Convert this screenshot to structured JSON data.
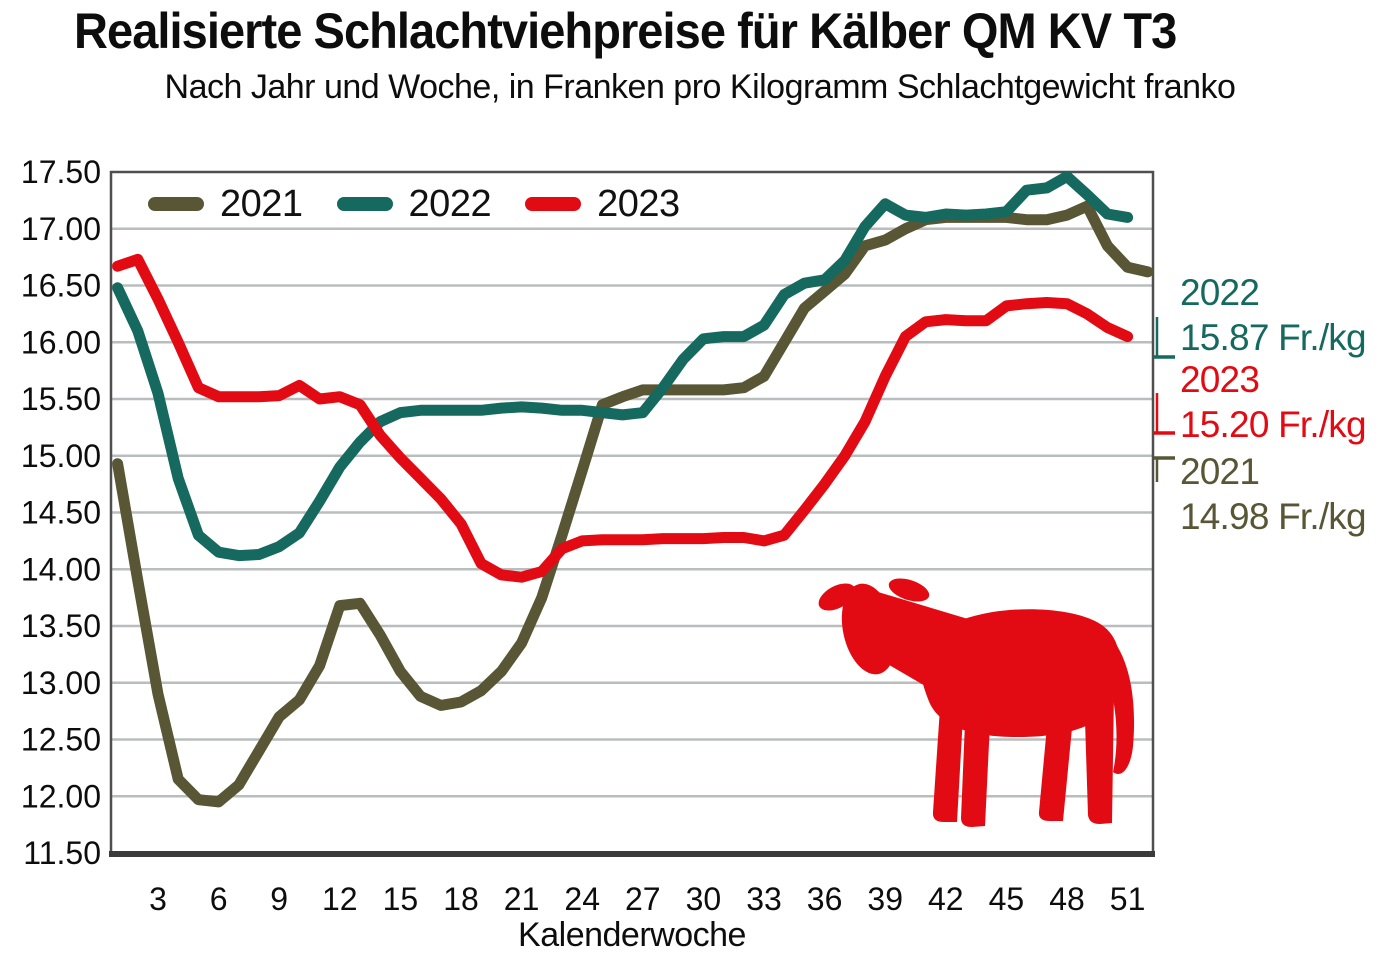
{
  "chart_data": {
    "type": "line",
    "title": "Realisierte Schlachtviehpreise für Kälber QM KV T3",
    "subtitle": "Nach Jahr und Woche, in Franken pro Kilogramm Schlachtgewicht franko",
    "xlabel": "Kalenderwoche",
    "ylabel": "Franken pro Kilogramm Schlachtgewicht",
    "xlim": [
      1,
      52
    ],
    "ylim": [
      11.5,
      17.5
    ],
    "grid": true,
    "legend_position": "top-left inside plot",
    "xticks": [
      3,
      6,
      9,
      12,
      15,
      18,
      21,
      24,
      27,
      30,
      33,
      36,
      39,
      42,
      45,
      48,
      51
    ],
    "yticks": [
      "17.50",
      "17.00",
      "16.50",
      "16.00",
      "15.50",
      "15.00",
      "14.50",
      "14.00",
      "13.50",
      "13.00",
      "12.50",
      "12.00",
      "11.50"
    ],
    "series": [
      {
        "name": "2021",
        "color": "#585635",
        "start_week": 1,
        "values": [
          14.93,
          13.9,
          12.9,
          12.15,
          11.97,
          11.95,
          12.1,
          12.4,
          12.7,
          12.85,
          13.15,
          13.68,
          13.7,
          13.42,
          13.1,
          12.88,
          12.8,
          12.83,
          12.93,
          13.1,
          13.35,
          13.75,
          14.3,
          14.87,
          15.45,
          15.52,
          15.58,
          15.58,
          15.58,
          15.58,
          15.58,
          15.6,
          15.7,
          16.0,
          16.3,
          16.45,
          16.6,
          16.85,
          16.9,
          17.0,
          17.08,
          17.1,
          17.1,
          17.1,
          17.1,
          17.08,
          17.08,
          17.12,
          17.2,
          16.85,
          16.66,
          16.62
        ]
      },
      {
        "name": "2022",
        "color": "#15695e",
        "start_week": 1,
        "values": [
          16.48,
          16.1,
          15.55,
          14.8,
          14.3,
          14.15,
          14.12,
          14.13,
          14.2,
          14.32,
          14.6,
          14.9,
          15.12,
          15.3,
          15.38,
          15.4,
          15.4,
          15.4,
          15.4,
          15.42,
          15.43,
          15.42,
          15.4,
          15.4,
          15.38,
          15.36,
          15.38,
          15.6,
          15.85,
          16.03,
          16.05,
          16.05,
          16.15,
          16.42,
          16.52,
          16.55,
          16.72,
          17.02,
          17.22,
          17.12,
          17.1,
          17.13,
          17.12,
          17.13,
          17.15,
          17.34,
          17.36,
          17.46,
          17.3,
          17.13,
          17.1
        ]
      },
      {
        "name": "2023",
        "color": "#e30b13",
        "start_week": 1,
        "values": [
          16.67,
          16.73,
          16.38,
          16.0,
          15.6,
          15.52,
          15.52,
          15.52,
          15.53,
          15.62,
          15.5,
          15.52,
          15.45,
          15.18,
          14.98,
          14.8,
          14.62,
          14.4,
          14.05,
          13.95,
          13.93,
          13.98,
          14.18,
          14.25,
          14.26,
          14.26,
          14.26,
          14.27,
          14.27,
          14.27,
          14.28,
          14.28,
          14.25,
          14.3,
          14.52,
          14.75,
          15.0,
          15.3,
          15.7,
          16.05,
          16.18,
          16.2,
          16.19,
          16.19,
          16.32,
          16.34,
          16.35,
          16.34,
          16.25,
          16.13,
          16.05
        ]
      }
    ],
    "annotations": {
      "right_labels": [
        {
          "year": "2022",
          "value_label": "15.87 Fr./kg",
          "value": 15.87,
          "color": "#15695e",
          "leader": "up"
        },
        {
          "year": "2023",
          "value_label": "15.20 Fr./kg",
          "value": 15.2,
          "color": "#e30b13",
          "leader": "up"
        },
        {
          "year": "2021",
          "value_label": "14.98 Fr./kg",
          "value": 14.98,
          "color": "#585635",
          "leader": "down"
        }
      ],
      "cow_icon_color": "#e30b13"
    },
    "style": {
      "grid_color": "#babdbe",
      "border_color": "#4f4f4f",
      "bottom_axis_color": "#3b3b3b",
      "text_color": "#0d0d0d",
      "line_width": 11
    }
  }
}
